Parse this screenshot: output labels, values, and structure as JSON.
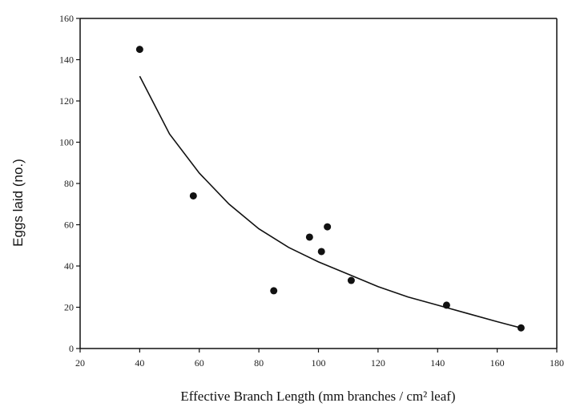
{
  "chart_data": {
    "type": "scatter",
    "xlabel": "Effective Branch Length (mm branches / cm² leaf)",
    "ylabel": "Eggs laid (no.)",
    "xlim": [
      20,
      180
    ],
    "ylim": [
      0,
      160
    ],
    "x_ticks": [
      "20",
      "40",
      "60",
      "80",
      "100",
      "120",
      "140",
      "160",
      "180"
    ],
    "y_ticks": [
      "0",
      "20",
      "40",
      "60",
      "80",
      "100",
      "120",
      "140",
      "160"
    ],
    "points": [
      {
        "x": 40,
        "y": 145
      },
      {
        "x": 58,
        "y": 74
      },
      {
        "x": 85,
        "y": 28
      },
      {
        "x": 97,
        "y": 54
      },
      {
        "x": 101,
        "y": 47
      },
      {
        "x": 103,
        "y": 59
      },
      {
        "x": 111,
        "y": 33
      },
      {
        "x": 143,
        "y": 21
      },
      {
        "x": 168,
        "y": 10
      }
    ],
    "fit_curve": {
      "type": "power",
      "points": [
        {
          "x": 40,
          "y": 132
        },
        {
          "x": 50,
          "y": 104
        },
        {
          "x": 60,
          "y": 85
        },
        {
          "x": 70,
          "y": 70
        },
        {
          "x": 80,
          "y": 58
        },
        {
          "x": 90,
          "y": 49
        },
        {
          "x": 100,
          "y": 42
        },
        {
          "x": 110,
          "y": 36
        },
        {
          "x": 120,
          "y": 30
        },
        {
          "x": 130,
          "y": 25
        },
        {
          "x": 140,
          "y": 21
        },
        {
          "x": 150,
          "y": 17
        },
        {
          "x": 160,
          "y": 13
        },
        {
          "x": 168,
          "y": 10
        }
      ]
    },
    "grid": false,
    "colors": {
      "points": "#111111",
      "curve": "#111111",
      "axes": "#111111"
    }
  }
}
